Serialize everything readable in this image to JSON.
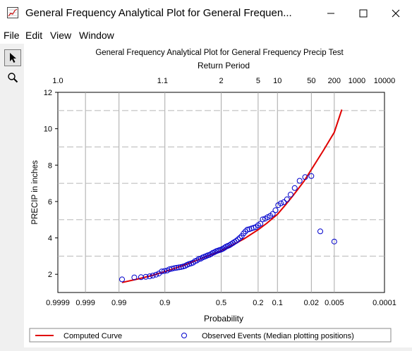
{
  "window": {
    "title": "General Frequency Analytical Plot for General Frequen...",
    "minimize_glyph": "—",
    "maximize_glyph": "☐",
    "close_glyph": "✕"
  },
  "menu": [
    "File",
    "Edit",
    "View",
    "Window"
  ],
  "tools": [
    {
      "name": "pointer-tool",
      "icon": "arrow-pointer-icon"
    },
    {
      "name": "zoom-tool",
      "icon": "magnifier-icon"
    }
  ],
  "chart_data": {
    "type": "scatter",
    "title": "General Frequency Analytical Plot for General Frequency Precip Test",
    "top_axis_label": "Return Period",
    "top_ticks": [
      "1.0",
      "1.1",
      "2",
      "5",
      "10",
      "50",
      "200",
      "1000",
      "10000"
    ],
    "xlabel": "Probability",
    "bottom_ticks": [
      "0.9999",
      "0.999",
      "0.99",
      "0.9",
      "0.5",
      "0.2",
      "0.1",
      "0.02",
      "0.005",
      "0.0001"
    ],
    "ylabel": "PRECIP in inches",
    "ylim": [
      1,
      12
    ],
    "yticks": [
      2,
      4,
      6,
      8,
      10,
      12
    ],
    "x_scale": "normal probability (exceedance)",
    "grid": true,
    "legend_position": "bottom",
    "series": [
      {
        "name": "Computed Curve",
        "color": "#e00000",
        "x": [
          0.988,
          0.97,
          0.94,
          0.9,
          0.8,
          0.7,
          0.6,
          0.5,
          0.4,
          0.3,
          0.2,
          0.15,
          0.1,
          0.07,
          0.05,
          0.03,
          0.02,
          0.01,
          0.005,
          0.003
        ],
        "y": [
          1.55,
          1.75,
          1.95,
          2.15,
          2.5,
          2.8,
          3.05,
          3.3,
          3.6,
          3.95,
          4.45,
          4.8,
          5.3,
          5.85,
          6.35,
          7.1,
          7.75,
          8.8,
          9.8,
          11.05
        ]
      },
      {
        "name": "Observed Events (Median plotting positions)",
        "color": "#0000cc",
        "x": [
          0.988,
          0.976,
          0.966,
          0.957,
          0.948,
          0.94,
          0.931,
          0.922,
          0.912,
          0.902,
          0.891,
          0.88,
          0.869,
          0.857,
          0.845,
          0.833,
          0.82,
          0.807,
          0.794,
          0.781,
          0.767,
          0.753,
          0.739,
          0.725,
          0.71,
          0.695,
          0.68,
          0.665,
          0.65,
          0.635,
          0.62,
          0.605,
          0.59,
          0.575,
          0.56,
          0.545,
          0.53,
          0.515,
          0.5,
          0.485,
          0.47,
          0.455,
          0.44,
          0.425,
          0.41,
          0.395,
          0.38,
          0.365,
          0.35,
          0.335,
          0.32,
          0.305,
          0.29,
          0.275,
          0.26,
          0.245,
          0.23,
          0.215,
          0.2,
          0.186,
          0.172,
          0.158,
          0.145,
          0.132,
          0.12,
          0.108,
          0.097,
          0.087,
          0.077,
          0.067,
          0.057,
          0.047,
          0.037,
          0.028,
          0.02,
          0.012,
          0.005
        ],
        "y": [
          1.72,
          1.83,
          1.84,
          1.86,
          1.89,
          1.93,
          1.98,
          2.04,
          2.16,
          2.18,
          2.21,
          2.28,
          2.31,
          2.34,
          2.36,
          2.38,
          2.4,
          2.43,
          2.46,
          2.52,
          2.57,
          2.6,
          2.64,
          2.72,
          2.76,
          2.84,
          2.86,
          2.92,
          2.96,
          3.0,
          3.04,
          3.07,
          3.12,
          3.18,
          3.22,
          3.27,
          3.3,
          3.33,
          3.36,
          3.4,
          3.46,
          3.52,
          3.56,
          3.6,
          3.66,
          3.72,
          3.78,
          3.84,
          3.92,
          4.0,
          4.1,
          4.24,
          4.36,
          4.46,
          4.48,
          4.52,
          4.56,
          4.6,
          4.7,
          4.78,
          5.02,
          5.06,
          5.14,
          5.21,
          5.32,
          5.52,
          5.8,
          5.9,
          5.96,
          6.12,
          6.38,
          6.74,
          7.14,
          7.34,
          7.4,
          4.36,
          3.8
        ]
      }
    ]
  }
}
